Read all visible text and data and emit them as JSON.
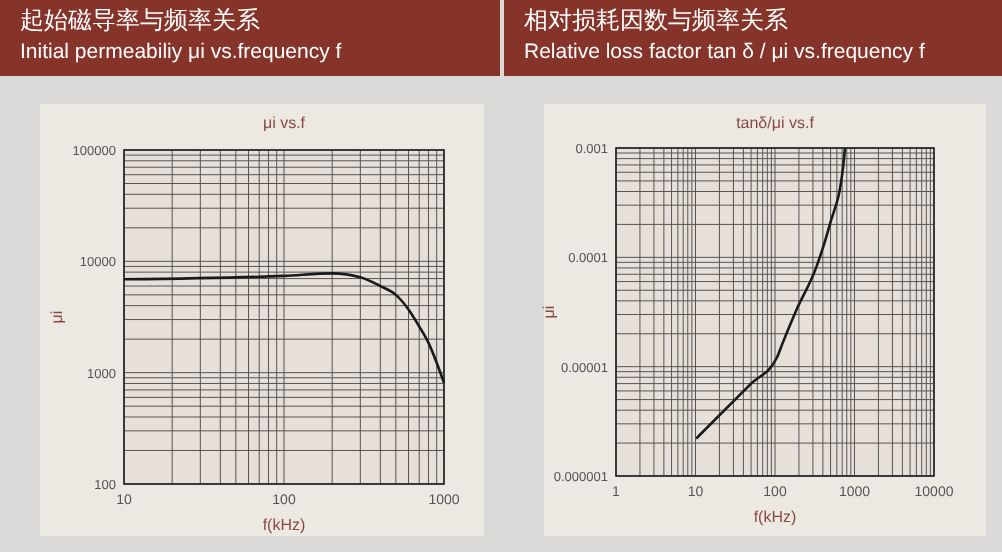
{
  "chart_data": [
    {
      "type": "line",
      "title": "μi vs.f",
      "annotations": [
        "起始磁导率与频率关系",
        "Initial permeabiliy μi vs.frequency f"
      ],
      "xlabel": "f(kHz)",
      "ylabel": "μi",
      "log": "xy",
      "grid": true,
      "xlim": [
        10,
        1000
      ],
      "ylim": [
        100,
        100000
      ],
      "xticks": [
        10,
        100,
        1000
      ],
      "yticks": [
        100,
        1000,
        10000,
        100000
      ],
      "series": [
        {
          "color": "#1a1a1a",
          "x": [
            10,
            100,
            200,
            300,
            400,
            500,
            600,
            700,
            800,
            900,
            1000
          ],
          "values": [
            6900,
            7400,
            7800,
            7200,
            6000,
            5000,
            3700,
            2600,
            1850,
            1230,
            810
          ]
        }
      ]
    },
    {
      "type": "line",
      "title": "tanδ/μi vs.f",
      "annotations": [
        "相对损耗因数与频率关系",
        "Relative loss factor tan δ / μi vs.frequency f"
      ],
      "xlabel": "f(kHz)",
      "ylabel": "μi",
      "log": "xy",
      "grid": true,
      "xlim": [
        1,
        10000
      ],
      "ylim": [
        1e-06,
        0.001
      ],
      "xticks": [
        1,
        10,
        100,
        1000,
        10000
      ],
      "yticks": [
        {
          "value": 1e-06,
          "label": "0.000001"
        },
        {
          "value": 1e-05,
          "label": "0.00001"
        },
        0.0001,
        0.001
      ],
      "series": [
        {
          "color": "#1a1a1a",
          "x": [
            10.2,
            50,
            105,
            125,
            186,
            330,
            490,
            720,
            760
          ],
          "values": [
            2.2e-06,
            7e-06,
            1.2e-05,
            1.65e-05,
            3.3e-05,
            8.1e-05,
            0.0002,
            0.00068,
            0.001
          ]
        }
      ]
    }
  ]
}
